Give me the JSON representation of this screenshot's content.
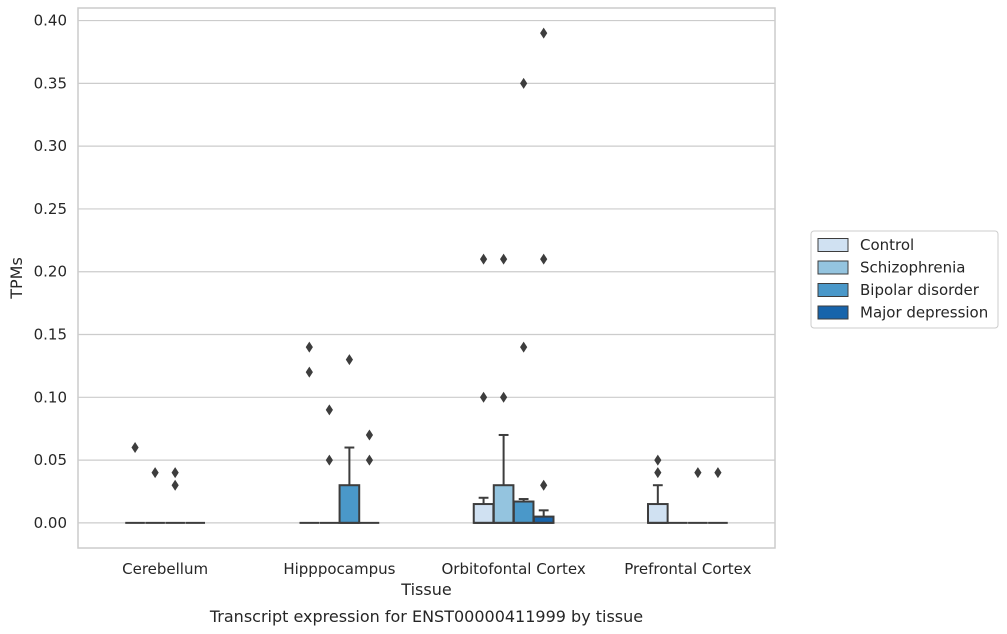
{
  "chart_data": {
    "type": "box",
    "xlabel": "Tissue",
    "ylabel": "TPMs",
    "caption": "Transcript expression for ENST00000411999 by tissue",
    "ylim": [
      -0.02,
      0.41
    ],
    "yticks": [
      "0.00",
      "0.05",
      "0.10",
      "0.15",
      "0.20",
      "0.25",
      "0.30",
      "0.35",
      "0.40"
    ],
    "yticks_values": [
      0,
      0.05,
      0.1,
      0.15,
      0.2,
      0.25,
      0.3,
      0.35,
      0.4
    ],
    "grid": "horizontal",
    "legend_position": "right",
    "categories": [
      "Cerebellum",
      "Hipppocampus",
      "Orbitofontal Cortex",
      "Prefrontal Cortex"
    ],
    "series": [
      {
        "name": "Control",
        "color": "#d0e1f2",
        "boxes": [
          {
            "q1": 0,
            "median": 0,
            "q3": 0,
            "whislo": 0,
            "whishi": 0,
            "fliers": [
              0.06
            ]
          },
          {
            "q1": 0,
            "median": 0,
            "q3": 0,
            "whislo": 0,
            "whishi": 0,
            "fliers": [
              0.12,
              0.14
            ]
          },
          {
            "q1": 0,
            "median": 0,
            "q3": 0.015,
            "whislo": 0,
            "whishi": 0.02,
            "fliers": [
              0.1,
              0.21
            ]
          },
          {
            "q1": 0,
            "median": 0,
            "q3": 0.015,
            "whislo": 0,
            "whishi": 0.03,
            "fliers": [
              0.04,
              0.05
            ]
          }
        ]
      },
      {
        "name": "Schizophrenia",
        "color": "#94c4df",
        "boxes": [
          {
            "q1": 0,
            "median": 0,
            "q3": 0,
            "whislo": 0,
            "whishi": 0,
            "fliers": [
              0.04
            ]
          },
          {
            "q1": 0,
            "median": 0,
            "q3": 0,
            "whislo": 0,
            "whishi": 0,
            "fliers": [
              0.05,
              0.09
            ]
          },
          {
            "q1": 0,
            "median": 0,
            "q3": 0.03,
            "whislo": 0,
            "whishi": 0.07,
            "fliers": [
              0.1,
              0.21
            ]
          },
          {
            "q1": 0,
            "median": 0,
            "q3": 0,
            "whislo": 0,
            "whishi": 0,
            "fliers": []
          }
        ]
      },
      {
        "name": "Bipolar disorder",
        "color": "#4a98c9",
        "boxes": [
          {
            "q1": 0,
            "median": 0,
            "q3": 0,
            "whislo": 0,
            "whishi": 0,
            "fliers": [
              0.03,
              0.04
            ]
          },
          {
            "q1": 0,
            "median": 0,
            "q3": 0.03,
            "whislo": 0,
            "whishi": 0.06,
            "fliers": [
              0.13
            ]
          },
          {
            "q1": 0,
            "median": 0,
            "q3": 0.017,
            "whislo": 0,
            "whishi": 0.019,
            "fliers": [
              0.14,
              0.35
            ]
          },
          {
            "q1": 0,
            "median": 0,
            "q3": 0,
            "whislo": 0,
            "whishi": 0,
            "fliers": [
              0.04
            ]
          }
        ]
      },
      {
        "name": "Major depression",
        "color": "#1764ab",
        "boxes": [
          {
            "q1": 0,
            "median": 0,
            "q3": 0,
            "whislo": 0,
            "whishi": 0,
            "fliers": []
          },
          {
            "q1": 0,
            "median": 0,
            "q3": 0,
            "whislo": 0,
            "whishi": 0,
            "fliers": [
              0.05,
              0.07
            ]
          },
          {
            "q1": 0,
            "median": 0,
            "q3": 0.005,
            "whislo": 0,
            "whishi": 0.01,
            "fliers": [
              0.03,
              0.21,
              0.39
            ]
          },
          {
            "q1": 0,
            "median": 0,
            "q3": 0,
            "whislo": 0,
            "whishi": 0,
            "fliers": [
              0.04
            ]
          }
        ]
      }
    ]
  }
}
